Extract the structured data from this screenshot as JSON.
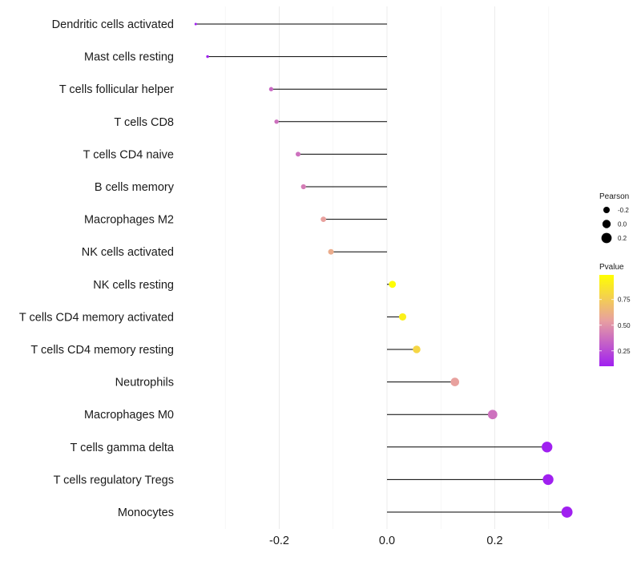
{
  "chart_data": {
    "type": "lollipop",
    "title": "",
    "xlabel": "",
    "ylabel": "",
    "xlim": [
      -0.355,
      0.355
    ],
    "x_ticks": [
      -0.2,
      0.0,
      0.2
    ],
    "x_tick_labels": [
      "-0.2",
      "0.0",
      "0.2"
    ],
    "minor_gridlines": [
      -0.3,
      -0.1,
      0.1,
      0.3
    ],
    "grid": true,
    "baseline": 0.0,
    "categories": [
      "Dendritic cells activated",
      "Mast cells resting",
      "T cells follicular helper",
      "T cells CD8",
      "T cells CD4 naive",
      "B cells memory",
      "Macrophages M2",
      "NK cells activated",
      "NK cells resting",
      "T cells CD4 memory activated",
      "T cells CD4 memory resting",
      "Neutrophils",
      "Macrophages M0",
      "T cells gamma delta",
      "T cells regulatory  Tregs ",
      "Monocytes"
    ],
    "pearson": [
      -0.355,
      -0.333,
      -0.215,
      -0.205,
      -0.165,
      -0.155,
      -0.118,
      -0.104,
      0.01,
      0.029,
      0.055,
      0.126,
      0.196,
      0.297,
      0.299,
      0.334
    ],
    "pvalue": [
      0.02,
      0.05,
      0.35,
      0.38,
      0.38,
      0.42,
      0.55,
      0.6,
      0.98,
      0.92,
      0.8,
      0.55,
      0.38,
      0.07,
      0.07,
      0.05
    ],
    "legend": {
      "placement": "right",
      "size": {
        "title": "Pearson",
        "values": [
          -0.2,
          0.0,
          0.2
        ],
        "labels": [
          "-0.2",
          "0.0",
          "0.2"
        ]
      },
      "color": {
        "title": "Pvalue",
        "range": [
          0.1,
          0.99
        ],
        "tick_values": [
          0.25,
          0.5,
          0.75
        ],
        "tick_labels": [
          "0.25",
          "0.50",
          "0.75"
        ],
        "low_color": "#a020f0",
        "mid_color": "#e8a0a0",
        "high_color": "#ffff00"
      }
    }
  }
}
